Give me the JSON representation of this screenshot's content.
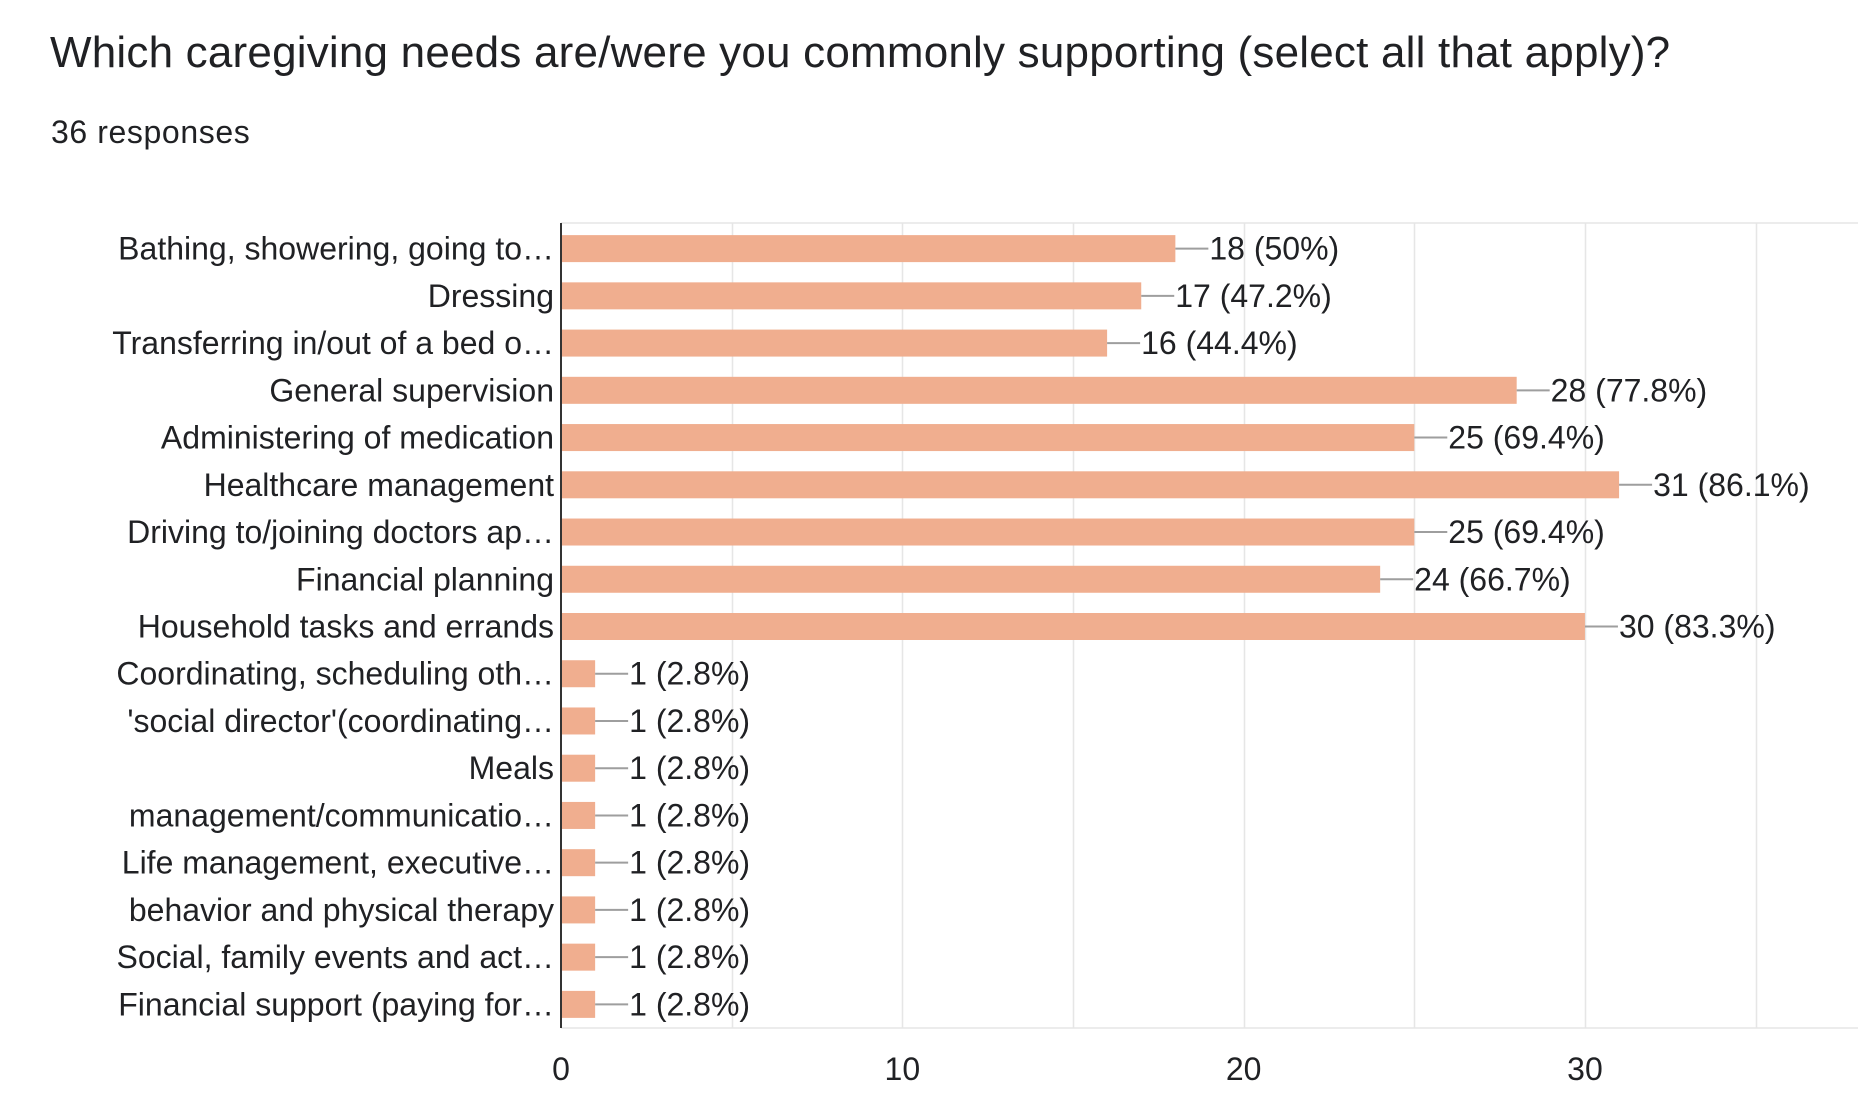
{
  "header": {
    "title": "Which caregiving needs are/were you commonly supporting (select all that apply)?",
    "responses": "36 responses"
  },
  "colors": {
    "bar": "#f0ae8f",
    "grid": "#e6e6e6",
    "axis": "#333333",
    "leader": "#9e9e9e"
  },
  "chart_data": {
    "type": "bar",
    "orientation": "horizontal",
    "title": "Which caregiving needs are/were you commonly supporting (select all that apply)?",
    "xlim": [
      0,
      38
    ],
    "xticks": [
      0,
      10,
      20,
      30
    ],
    "grid": true,
    "categories": [
      "Bathing, showering, going to…",
      "Dressing",
      "Transferring in/out of a bed o…",
      "General supervision",
      "Administering of medication",
      "Healthcare management",
      "Driving to/joining doctors ap…",
      "Financial planning",
      "Household tasks and errands",
      "Coordinating, scheduling oth…",
      "'social director'(coordinating…",
      "Meals",
      "management/communicatio…",
      "Life management, executive…",
      "behavior and physical therapy",
      "Social, family events and act…",
      "Financial support (paying for…"
    ],
    "values": [
      18,
      17,
      16,
      28,
      25,
      31,
      25,
      24,
      30,
      1,
      1,
      1,
      1,
      1,
      1,
      1,
      1
    ],
    "value_labels": [
      "18 (50%)",
      "17 (47.2%)",
      "16 (44.4%)",
      "28 (77.8%)",
      "25 (69.4%)",
      "31 (86.1%)",
      "25 (69.4%)",
      "24 (66.7%)",
      "30 (83.3%)",
      "1 (2.8%)",
      "1 (2.8%)",
      "1 (2.8%)",
      "1 (2.8%)",
      "1 (2.8%)",
      "1 (2.8%)",
      "1 (2.8%)",
      "1 (2.8%)"
    ]
  }
}
